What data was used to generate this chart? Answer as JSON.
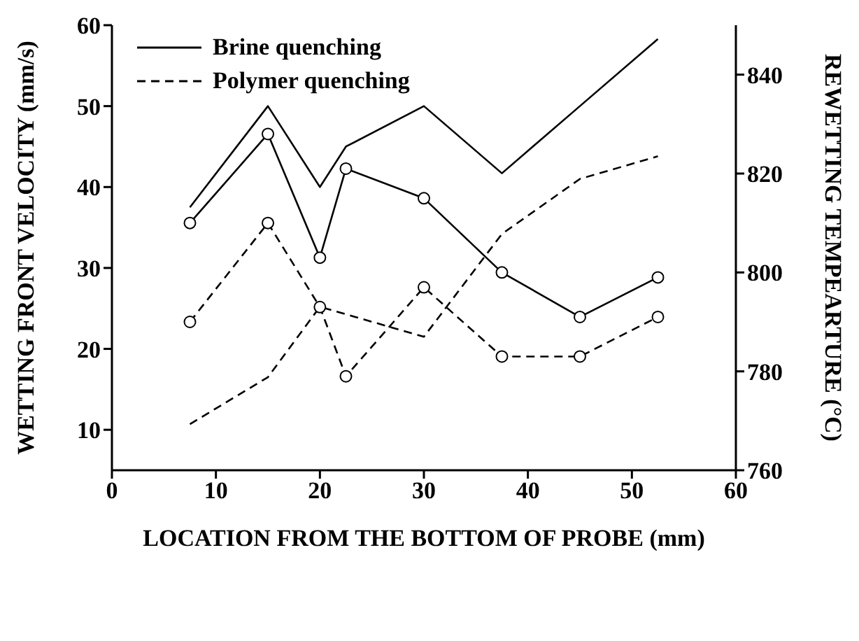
{
  "chart_data": {
    "type": "line",
    "xlabel": "LOCATION FROM THE BOTTOM OF PROBE (mm)",
    "ylabel": "WETTING FRONT VELOCITY (mm/s)",
    "y2label": "REWETTING TEMPEARTURE (°C)",
    "x": [
      7.5,
      15,
      20,
      22.5,
      30,
      37.5,
      45,
      52.5
    ],
    "series": [
      {
        "name": "Brine quenching",
        "color": "#000000",
        "line_style": "solid",
        "marker": "none",
        "values": [
          37.5,
          50,
          40,
          45,
          50,
          41.7,
          50,
          58.3
        ]
      },
      {
        "name": "Polymer quenching",
        "color": "#000000",
        "line_style": "dashed",
        "marker": "none",
        "values": [
          10.7,
          16.5,
          25.2,
          null,
          21.5,
          34.2,
          41,
          43.8
        ]
      },
      {
        "color": "#000000",
        "line_style": "solid",
        "marker": "circle",
        "axis": "y2",
        "values": [
          810,
          828,
          803,
          821,
          815,
          800,
          791,
          799
        ]
      },
      {
        "color": "#000000",
        "line_style": "dashed",
        "marker": "circle",
        "axis": "y2",
        "values": [
          790,
          810,
          793,
          779,
          797,
          783,
          783,
          791
        ]
      }
    ],
    "xlim": [
      0,
      60
    ],
    "xticks": [
      0,
      10,
      20,
      30,
      40,
      50,
      60
    ],
    "ylim": [
      5,
      60
    ],
    "yticks": [
      10,
      20,
      30,
      40,
      50,
      60
    ],
    "y2lim": [
      760,
      850
    ],
    "y2ticks": [
      760,
      780,
      800,
      820,
      840
    ],
    "grid": false,
    "legend": "top left"
  }
}
